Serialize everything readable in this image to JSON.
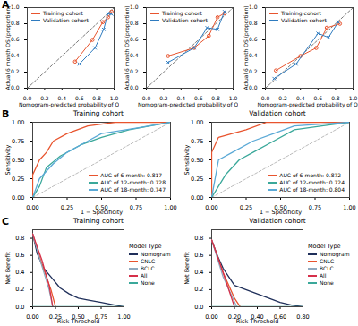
{
  "chart_data": [
    {
      "type": "calibration",
      "panel": "A",
      "x_label": "Nomogram-predicted probability of OS",
      "y_label": "Actual 6 month OS (proportion)",
      "xlim": [
        0,
        1
      ],
      "ylim": [
        0,
        1
      ],
      "xticks": [
        {
          "value": 0,
          "label": "0.0"
        },
        0.2,
        0.4,
        0.6,
        0.8,
        {
          "value": 1,
          "label": "1.0"
        }
      ],
      "yticks": [
        {
          "value": 0,
          "label": "0.0"
        },
        0.2,
        0.4,
        0.6,
        0.8,
        {
          "value": 1,
          "label": "1.0"
        }
      ],
      "grid": false,
      "legend": "top-left",
      "series": [
        {
          "name": "Training cohort",
          "color": "#e8542e",
          "marker": "circle",
          "x": [
            0.55,
            0.75,
            0.87,
            0.93,
            0.97
          ],
          "values": [
            0.33,
            0.6,
            0.82,
            0.88,
            0.95
          ]
        },
        {
          "name": "Validation cohort",
          "color": "#2e7bbf",
          "marker": "cross",
          "x": [
            0.6,
            0.78,
            0.88,
            0.93,
            0.97
          ],
          "values": [
            0.3,
            0.5,
            0.73,
            0.93,
            0.92
          ]
        }
      ]
    },
    {
      "type": "calibration",
      "x_label": "Nomogram-predicted probability of OS",
      "y_label": "Actual 6 month OS (proportion)",
      "xlim": [
        0,
        1
      ],
      "ylim": [
        0,
        1
      ],
      "xticks": [
        {
          "value": 0,
          "label": "0.0"
        },
        0.2,
        0.4,
        0.6,
        0.8,
        {
          "value": 1,
          "label": "1.0"
        }
      ],
      "yticks": [
        {
          "value": 0,
          "label": "0.0"
        },
        0.2,
        0.4,
        0.6,
        0.8,
        {
          "value": 1,
          "label": "1.0"
        }
      ],
      "grid": false,
      "legend": "top-left",
      "series": [
        {
          "name": "Training cohort",
          "color": "#e8542e",
          "marker": "circle",
          "x": [
            0.25,
            0.55,
            0.72,
            0.82,
            0.9
          ],
          "values": [
            0.4,
            0.5,
            0.65,
            0.88,
            0.93
          ]
        },
        {
          "name": "Validation cohort",
          "color": "#2e7bbf",
          "marker": "cross",
          "x": [
            0.25,
            0.55,
            0.7,
            0.82,
            0.9
          ],
          "values": [
            0.32,
            0.5,
            0.75,
            0.73,
            0.95
          ]
        }
      ]
    },
    {
      "type": "calibration",
      "x_label": "Nomogram-predicted probability of OS",
      "y_label": "Actual 6 month OS (proportion)",
      "xlim": [
        0,
        1
      ],
      "ylim": [
        0,
        1
      ],
      "xticks": [
        {
          "value": 0,
          "label": "0.0"
        },
        0.2,
        0.4,
        0.6,
        0.8,
        {
          "value": 1,
          "label": "1.0"
        }
      ],
      "yticks": [
        {
          "value": 0,
          "label": "0.0"
        },
        0.2,
        0.4,
        0.6,
        0.8,
        {
          "value": 1,
          "label": "1.0"
        }
      ],
      "grid": false,
      "legend": "top-left",
      "series": [
        {
          "name": "Training cohort",
          "color": "#e8542e",
          "marker": "circle",
          "x": [
            0.12,
            0.4,
            0.58,
            0.7,
            0.85
          ],
          "values": [
            0.22,
            0.4,
            0.5,
            0.75,
            0.8
          ]
        },
        {
          "name": "Validation cohort",
          "color": "#2e7bbf",
          "marker": "cross",
          "x": [
            0.1,
            0.35,
            0.6,
            0.72,
            0.83
          ],
          "values": [
            0.12,
            0.3,
            0.68,
            0.63,
            0.82
          ]
        }
      ]
    },
    {
      "type": "roc",
      "panel": "B",
      "title": "Training cohort",
      "x_label": "1 − Specificity",
      "y_label": "Sensitivity",
      "xlim": [
        0,
        1
      ],
      "ylim": [
        0,
        1
      ],
      "xticks": [
        {
          "value": 0,
          "label": "0.00"
        },
        0.25,
        {
          "value": 0.5,
          "label": "0.50"
        },
        0.75,
        {
          "value": 1,
          "label": "1.00"
        }
      ],
      "yticks": [
        {
          "value": 0,
          "label": "0.00"
        },
        0.25,
        {
          "value": 0.5,
          "label": "0.50"
        },
        0.75,
        {
          "value": 1,
          "label": "1.00"
        }
      ],
      "grid": false,
      "legend": "bottom-right",
      "series": [
        {
          "name": "AUC of 6-month: 0.817",
          "color": "#e8542e",
          "x": [
            0,
            0,
            0.05,
            0.1,
            0.15,
            0.25,
            0.4,
            0.6,
            1
          ],
          "values": [
            0,
            0.3,
            0.5,
            0.6,
            0.75,
            0.85,
            0.95,
            1,
            1
          ]
        },
        {
          "name": "AUC of 12-month: 0.728",
          "color": "#3aa89a",
          "x": [
            0,
            0.05,
            0.1,
            0.2,
            0.35,
            0.5,
            0.7,
            1
          ],
          "values": [
            0,
            0.15,
            0.4,
            0.55,
            0.7,
            0.8,
            0.9,
            1
          ]
        },
        {
          "name": "AUC of 18-month: 0.747",
          "color": "#5aa9d6",
          "x": [
            0,
            0.05,
            0.15,
            0.25,
            0.4,
            0.5,
            0.75,
            1
          ],
          "values": [
            0,
            0.25,
            0.45,
            0.6,
            0.75,
            0.85,
            0.92,
            1
          ]
        }
      ]
    },
    {
      "type": "roc",
      "title": "Validation cohort",
      "x_label": "1 − Specificity",
      "y_label": "Sensitivity",
      "xlim": [
        0,
        1
      ],
      "ylim": [
        0,
        1
      ],
      "xticks": [
        {
          "value": 0,
          "label": "0.00"
        },
        0.25,
        {
          "value": 0.5,
          "label": "0.50"
        },
        0.75,
        {
          "value": 1,
          "label": "1.00"
        }
      ],
      "yticks": [
        {
          "value": 0,
          "label": "0.00"
        },
        0.25,
        {
          "value": 0.5,
          "label": "0.50"
        },
        0.75,
        {
          "value": 1,
          "label": "1.00"
        }
      ],
      "grid": false,
      "legend": "bottom-right",
      "series": [
        {
          "name": "AUC of 6-month: 0.872",
          "color": "#e8542e",
          "x": [
            0,
            0,
            0.05,
            0.15,
            0.25,
            0.4,
            1
          ],
          "values": [
            0,
            0.6,
            0.8,
            0.85,
            0.9,
            1,
            1
          ]
        },
        {
          "name": "AUC of 12-month: 0.724",
          "color": "#3aa89a",
          "x": [
            0,
            0.1,
            0.2,
            0.3,
            0.45,
            0.6,
            0.8,
            1
          ],
          "values": [
            0,
            0.3,
            0.5,
            0.6,
            0.75,
            0.9,
            0.95,
            1
          ]
        },
        {
          "name": "AUC of 18-month: 0.804",
          "color": "#5aa9d6",
          "x": [
            0,
            0.05,
            0.15,
            0.3,
            0.45,
            0.6,
            1
          ],
          "values": [
            0,
            0.5,
            0.6,
            0.75,
            0.85,
            0.95,
            1
          ]
        }
      ]
    },
    {
      "type": "line",
      "panel": "C",
      "title": "Training cohort",
      "x_label": "Risk Threshold",
      "y_label": "Net Benefit",
      "xlim": [
        0,
        1
      ],
      "ylim": [
        0,
        0.9
      ],
      "xticks": [
        {
          "value": 0,
          "label": "0.00"
        },
        0.25,
        {
          "value": 0.5,
          "label": "0.50"
        },
        0.75,
        {
          "value": 1,
          "label": "1.00"
        }
      ],
      "yticks": [
        {
          "value": 0,
          "label": "0.0"
        },
        0.2,
        0.4,
        0.6,
        0.8
      ],
      "grid": false,
      "legend": "right",
      "legend_title": "Model Type",
      "series": [
        {
          "name": "Nomogram",
          "color": "#1f2f5a",
          "x": [
            0,
            0.05,
            0.12,
            0.2,
            0.3,
            0.4,
            0.5,
            0.6,
            0.75,
            0.9,
            1
          ],
          "values": [
            0.85,
            0.62,
            0.45,
            0.35,
            0.22,
            0.15,
            0.1,
            0.08,
            0.05,
            0.02,
            0
          ]
        },
        {
          "name": "CNLC",
          "color": "#e8542e",
          "x": [
            0,
            0.1,
            0.2,
            0.25
          ],
          "values": [
            0.85,
            0.5,
            0.2,
            0
          ]
        },
        {
          "name": "BCLC",
          "color": "#8fa9bf",
          "x": [
            0,
            0.08,
            0.18,
            0.22
          ],
          "values": [
            0.85,
            0.55,
            0.2,
            0
          ]
        },
        {
          "name": "All",
          "color": "#d6304a",
          "x": [
            0,
            0.1,
            0.18,
            0.22
          ],
          "values": [
            0.85,
            0.55,
            0.25,
            0
          ]
        },
        {
          "name": "None",
          "color": "#3aa89a",
          "x": [
            0,
            1
          ],
          "values": [
            0,
            0
          ]
        }
      ]
    },
    {
      "type": "line",
      "title": "Validation cohort",
      "x_label": "Risk Threshold",
      "y_label": "Net Benefit",
      "xlim": [
        0,
        0.8
      ],
      "ylim": [
        0,
        0.9
      ],
      "xticks": [
        {
          "value": 0,
          "label": "0.00"
        },
        {
          "value": 0.2,
          "label": "0.20"
        },
        {
          "value": 0.4,
          "label": "0.40"
        },
        {
          "value": 0.6,
          "label": "0.60"
        },
        {
          "value": 0.8,
          "label": "0.80"
        }
      ],
      "yticks": [
        {
          "value": 0,
          "label": "0.0"
        },
        0.2,
        0.4,
        0.6,
        0.8
      ],
      "grid": false,
      "legend": "right",
      "legend_title": "Model Type",
      "series": [
        {
          "name": "Nomogram",
          "color": "#1f2f5a",
          "x": [
            0,
            0.05,
            0.1,
            0.15,
            0.2,
            0.3,
            0.4,
            0.5,
            0.6,
            0.7,
            0.8
          ],
          "values": [
            0.78,
            0.6,
            0.45,
            0.35,
            0.25,
            0.2,
            0.15,
            0.1,
            0.05,
            0.02,
            0
          ]
        },
        {
          "name": "CNLC",
          "color": "#e8542e",
          "x": [
            0,
            0.1,
            0.2,
            0.25
          ],
          "values": [
            0.78,
            0.4,
            0.1,
            0
          ]
        },
        {
          "name": "BCLC",
          "color": "#8fa9bf",
          "x": [
            0,
            0.1,
            0.22
          ],
          "values": [
            0.78,
            0.35,
            0
          ]
        },
        {
          "name": "All",
          "color": "#d6304a",
          "x": [
            0,
            0.1,
            0.2
          ],
          "values": [
            0.78,
            0.4,
            0
          ]
        },
        {
          "name": "None",
          "color": "#3aa89a",
          "x": [
            0,
            0.8
          ],
          "values": [
            0,
            0
          ]
        }
      ]
    }
  ]
}
